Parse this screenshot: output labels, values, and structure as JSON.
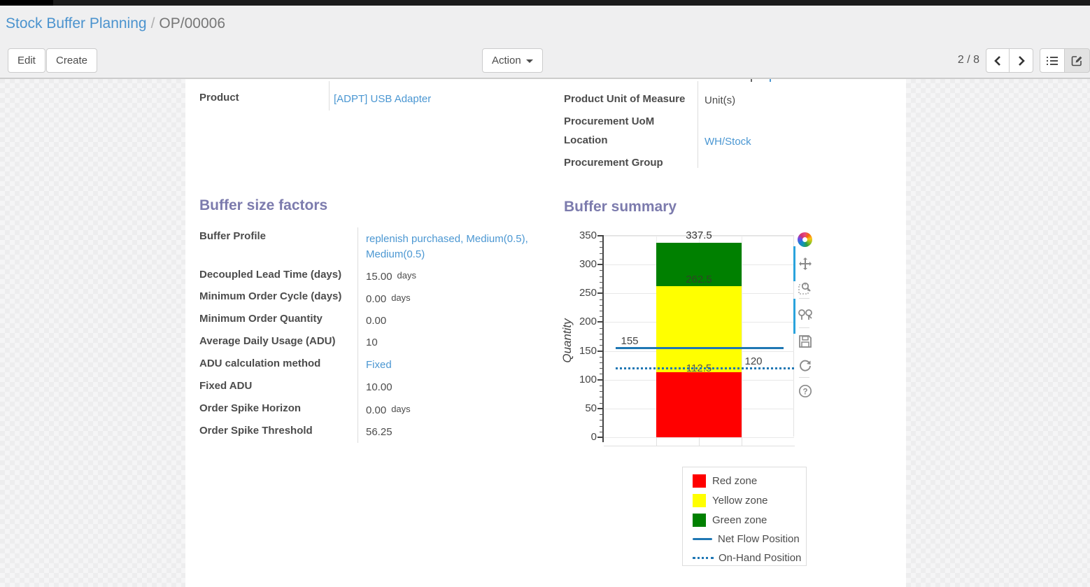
{
  "breadcrumb": {
    "parent": "Stock Buffer Planning",
    "separator": "/",
    "current": "OP/00006"
  },
  "toolbar": {
    "edit_label": "Edit",
    "create_label": "Create",
    "action_label": "Action",
    "pager": "2 / 8"
  },
  "view_switcher": {
    "icons": [
      "list-icon",
      "form-edit-icon"
    ],
    "active": "form"
  },
  "product_group": {
    "left_rows": [
      {
        "label": "Product",
        "value": "[ADPT] USB Adapter"
      }
    ],
    "right_rows": [
      {
        "label": "Product Unit of Measure",
        "value": "Unit(s)"
      },
      {
        "label": "Procurement UoM",
        "value": ""
      },
      {
        "label": "Location",
        "value": "WH/Stock"
      },
      {
        "label": "Procurement Group",
        "value": ""
      }
    ]
  },
  "factors": {
    "title": "Buffer size factors",
    "rows": [
      {
        "label": "Buffer Profile",
        "value": "replenish purchased, Medium(0.5), Medium(0.5)"
      },
      {
        "label": "Decoupled Lead Time (days)",
        "value": "15.00",
        "unit": "days"
      },
      {
        "label": "Minimum Order Cycle (days)",
        "value": "0.00",
        "unit": "days"
      },
      {
        "label": "Minimum Order Quantity",
        "value": "0.00"
      },
      {
        "label": "Average Daily Usage (ADU)",
        "value": "10"
      },
      {
        "label": "ADU calculation method",
        "value": "Fixed"
      },
      {
        "label": "Fixed ADU",
        "value": "10.00"
      },
      {
        "label": "Order Spike Horizon",
        "value": "0.00",
        "unit": "days"
      },
      {
        "label": "Order Spike Threshold",
        "value": "56.25"
      }
    ]
  },
  "summary": {
    "title": "Buffer summary"
  },
  "chart_data": {
    "type": "bar",
    "title": "Buffer summary",
    "ylabel": "Quantity",
    "ylim": [
      0,
      350
    ],
    "yticks": [
      0,
      50,
      100,
      150,
      200,
      250,
      300,
      350
    ],
    "grid": true,
    "zones": [
      {
        "name": "Red zone",
        "from": 0,
        "to": 112.5,
        "color": "#ff0000"
      },
      {
        "name": "Yellow zone",
        "from": 112.5,
        "to": 262.5,
        "color": "#ffff00"
      },
      {
        "name": "Green zone",
        "from": 262.5,
        "to": 337.5,
        "color": "#008000"
      }
    ],
    "lines": [
      {
        "name": "Net Flow Position",
        "value": 155,
        "style": "solid",
        "color": "#1f77b4"
      },
      {
        "name": "On-Hand Position",
        "value": 120,
        "style": "dotted",
        "color": "#1f77b4"
      }
    ],
    "annotations": [
      "337.5",
      "262.5",
      "112.5",
      "155",
      "120"
    ],
    "legend_position": "below-right"
  },
  "modebar": {
    "icons": [
      "plotly-logo-icon",
      "pan-icon",
      "box-zoom-icon",
      "hover-compare-icon",
      "save-icon",
      "reset-axes-icon",
      "help-icon"
    ]
  },
  "colors": {
    "heading": "#7c7bad",
    "link": "#4b97d2",
    "accent_blue": "#2aa3dc"
  }
}
